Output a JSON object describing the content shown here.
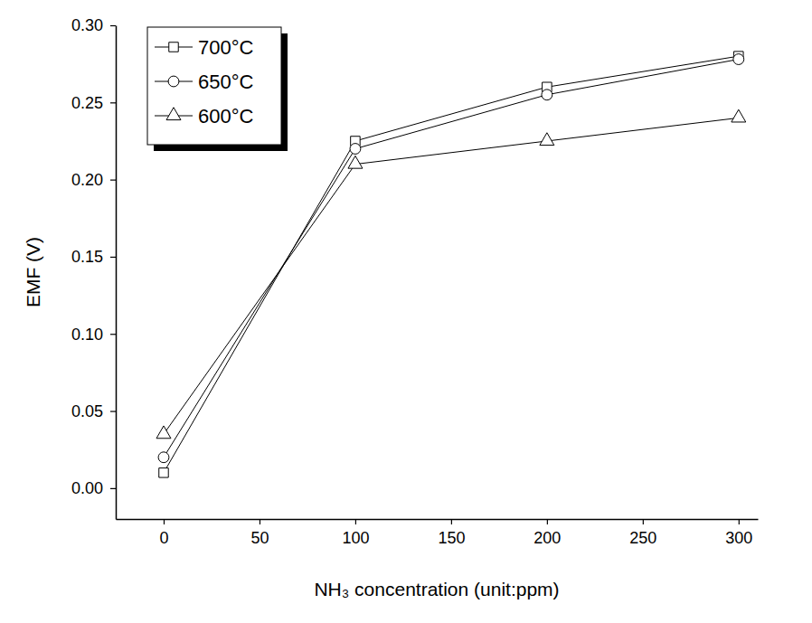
{
  "chart_data": {
    "type": "line",
    "x_label": "NH₃ concentration (unit:ppm)",
    "y_label": "EMF (V)",
    "x": [
      0,
      100,
      200,
      300
    ],
    "series": [
      {
        "name": "700°C",
        "color": "#000000",
        "marker": "square",
        "values": [
          0.01,
          0.225,
          0.26,
          0.28
        ]
      },
      {
        "name": "650°C",
        "color": "#000000",
        "marker": "circle",
        "values": [
          0.02,
          0.22,
          0.255,
          0.278
        ]
      },
      {
        "name": "600°C",
        "color": "#000000",
        "marker": "triangle",
        "values": [
          0.035,
          0.21,
          0.225,
          0.24
        ]
      }
    ],
    "xlim": [
      -25,
      310
    ],
    "xticks": [
      0,
      50,
      100,
      150,
      200,
      250,
      300
    ],
    "ylim": [
      -0.02,
      0.3
    ],
    "yticks": [
      {
        "value": 0,
        "label": "0.00"
      },
      {
        "value": 0.05,
        "label": "0.05"
      },
      {
        "value": 0.1,
        "label": "0.10"
      },
      {
        "value": 0.15,
        "label": "0.15"
      },
      {
        "value": 0.2,
        "label": "0.20"
      },
      {
        "value": 0.25,
        "label": "0.25"
      },
      {
        "value": 0.3,
        "label": "0.30"
      }
    ],
    "legend": "upper left",
    "grid": false
  }
}
